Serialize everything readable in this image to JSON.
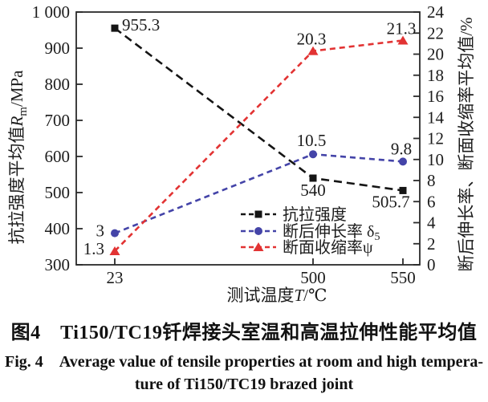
{
  "figure": {
    "caption_zh": "图4　Ti150/TC19钎焊接头室温和高温拉伸性能平均值",
    "caption_en_line1": "Fig. 4　Average value of tensile properties at room and high tempera-",
    "caption_en_line2": "ture of Ti150/TC19 brazed joint"
  },
  "chart_data": {
    "type": "line",
    "x_axis": {
      "title_prefix": "测试温度",
      "title_var": "T",
      "title_suffix": "/℃",
      "categories": [
        "23",
        "500",
        "550"
      ],
      "values": [
        23,
        500,
        550
      ]
    },
    "left_axis": {
      "title_prefix": "抗拉强度平均值",
      "title_var": "R",
      "title_sub": "m",
      "title_suffix": "/MPa",
      "min": 300,
      "max": 1000,
      "step": 100,
      "tick_labels": [
        "300",
        "400",
        "500",
        "600",
        "700",
        "800",
        "900",
        "1 000"
      ]
    },
    "right_axis": {
      "title": "断后伸长率、断面收缩率平均值/%",
      "min": 0,
      "max": 24,
      "step": 2,
      "tick_labels": [
        "0",
        "2",
        "4",
        "6",
        "8",
        "10",
        "12",
        "14",
        "16",
        "18",
        "20",
        "22",
        "24"
      ]
    },
    "grid": false,
    "legend_position": "inside-bottom-right",
    "series": [
      {
        "name": "抗拉强度",
        "name_sub": "",
        "axis": "left",
        "color": "#151515",
        "marker": "square",
        "line_style": "dashed",
        "values": [
          955.3,
          540,
          505.7
        ],
        "point_labels": [
          "955.3",
          "540",
          "505.7"
        ]
      },
      {
        "name": "断后伸长率 δ",
        "name_sub": "5",
        "axis": "right",
        "color": "#4444a8",
        "marker": "circle",
        "line_style": "dashed",
        "values": [
          3,
          10.5,
          9.8
        ],
        "point_labels": [
          "3",
          "10.5",
          "9.8"
        ]
      },
      {
        "name": "断面收缩率ψ",
        "name_sub": "",
        "axis": "right",
        "color": "#e23333",
        "marker": "triangle",
        "line_style": "dashed",
        "values": [
          1.3,
          20.3,
          21.3
        ],
        "point_labels": [
          "1.3",
          "20.3",
          "21.3"
        ]
      }
    ]
  }
}
